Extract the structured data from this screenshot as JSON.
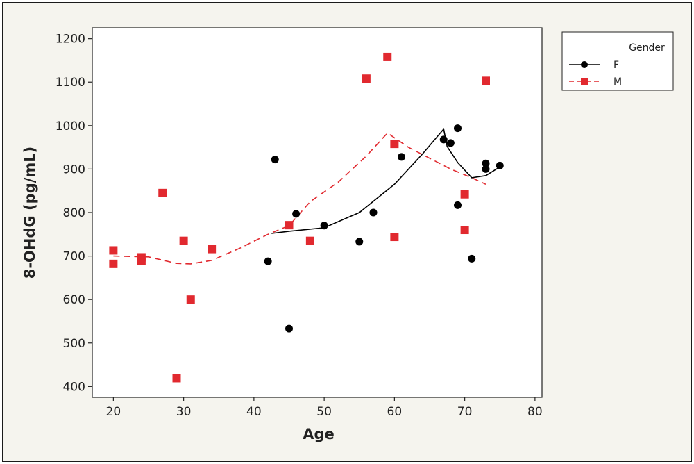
{
  "chart_data": {
    "type": "scatter",
    "title": "",
    "xlabel": "Age",
    "ylabel": "8-OHdG (pg/mL)",
    "xlim": [
      17,
      81
    ],
    "ylim": [
      375,
      1225
    ],
    "xticks": [
      20,
      30,
      40,
      50,
      60,
      70,
      80
    ],
    "yticks": [
      400,
      500,
      600,
      700,
      800,
      900,
      1000,
      1100,
      1200
    ],
    "grid": false,
    "legend": {
      "title": "Gender",
      "placement": "right"
    },
    "series": [
      {
        "name": "F",
        "color": "#000000",
        "marker": "circle",
        "line_style": "solid",
        "points": [
          [
            42,
            688
          ],
          [
            43,
            922
          ],
          [
            45,
            533
          ],
          [
            46,
            797
          ],
          [
            50,
            770
          ],
          [
            55,
            733
          ],
          [
            57,
            800
          ],
          [
            61,
            928
          ],
          [
            67,
            968
          ],
          [
            68,
            960
          ],
          [
            69,
            994
          ],
          [
            69,
            817
          ],
          [
            71,
            694
          ],
          [
            73,
            913
          ],
          [
            73,
            900
          ],
          [
            75,
            908
          ]
        ],
        "smoother": [
          [
            42.5,
            752
          ],
          [
            45,
            757
          ],
          [
            50,
            765
          ],
          [
            55,
            800
          ],
          [
            60,
            865
          ],
          [
            64,
            935
          ],
          [
            67,
            992
          ],
          [
            67.5,
            952
          ],
          [
            69,
            915
          ],
          [
            71,
            880
          ],
          [
            73,
            885
          ],
          [
            75,
            905
          ]
        ]
      },
      {
        "name": "M",
        "color": "#e1292f",
        "marker": "square",
        "line_style": "dashed",
        "points": [
          [
            20,
            713
          ],
          [
            20,
            682
          ],
          [
            24,
            697
          ],
          [
            24,
            689
          ],
          [
            27,
            845
          ],
          [
            29,
            419
          ],
          [
            30,
            735
          ],
          [
            31,
            600
          ],
          [
            34,
            716
          ],
          [
            45,
            771
          ],
          [
            48,
            735
          ],
          [
            56,
            1108
          ],
          [
            59,
            1158
          ],
          [
            60,
            958
          ],
          [
            60,
            744
          ],
          [
            70,
            842
          ],
          [
            70,
            760
          ],
          [
            73,
            1103
          ]
        ],
        "smoother": [
          [
            20,
            700
          ],
          [
            25,
            698
          ],
          [
            29,
            683
          ],
          [
            31,
            682
          ],
          [
            34,
            690
          ],
          [
            38,
            718
          ],
          [
            42,
            750
          ],
          [
            45,
            770
          ],
          [
            48,
            825
          ],
          [
            52,
            870
          ],
          [
            56,
            930
          ],
          [
            59,
            983
          ],
          [
            62,
            950
          ],
          [
            65,
            925
          ],
          [
            68,
            900
          ],
          [
            71,
            880
          ],
          [
            73,
            865
          ]
        ]
      }
    ]
  }
}
